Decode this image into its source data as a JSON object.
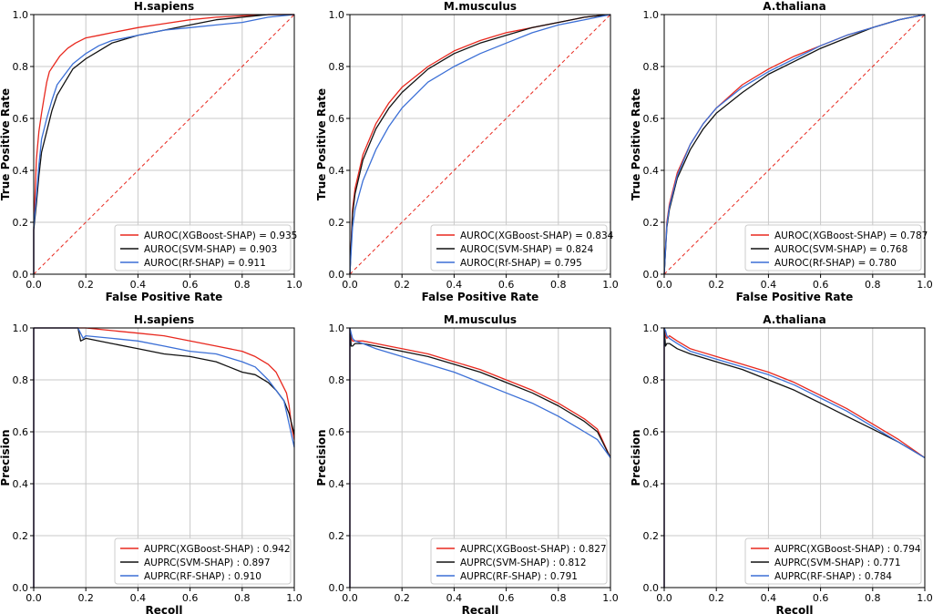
{
  "chart_data": [
    {
      "type": "line",
      "kind": "roc",
      "title": "H.sapiens",
      "xlabel": "False Positive Rate",
      "ylabel": "True Positive Rate",
      "xlim": [
        0,
        1
      ],
      "ylim": [
        0,
        1
      ],
      "xticks": [
        "0.0",
        "0.2",
        "0.4",
        "0.6",
        "0.8",
        "1.0"
      ],
      "yticks": [
        "0.0",
        "0.2",
        "0.4",
        "0.6",
        "0.8",
        "1.0"
      ],
      "grid": true,
      "legend_position": "lower-right",
      "diagonal": true,
      "series": [
        {
          "name": "XGBoost-SHAP",
          "label": "AUROC(XGBoost-SHAP) = 0.935",
          "color": "#e8281e",
          "x": [
            0,
            0,
            0.005,
            0.01,
            0.02,
            0.03,
            0.04,
            0.05,
            0.06,
            0.08,
            0.1,
            0.13,
            0.16,
            0.2,
            0.25,
            0.3,
            0.4,
            0.5,
            0.6,
            0.7,
            0.8,
            0.9,
            1
          ],
          "y": [
            0,
            0.17,
            0.3,
            0.44,
            0.55,
            0.62,
            0.68,
            0.74,
            0.78,
            0.81,
            0.84,
            0.87,
            0.89,
            0.91,
            0.92,
            0.93,
            0.95,
            0.965,
            0.98,
            0.99,
            0.995,
            1,
            1
          ]
        },
        {
          "name": "SVM-SHAP",
          "label": "AUROC(SVM-SHAP) = 0.903",
          "color": "#111111",
          "x": [
            0,
            0,
            0.01,
            0.02,
            0.03,
            0.05,
            0.07,
            0.09,
            0.12,
            0.15,
            0.2,
            0.25,
            0.3,
            0.4,
            0.5,
            0.6,
            0.7,
            0.8,
            0.9,
            1
          ],
          "y": [
            0,
            0.17,
            0.27,
            0.38,
            0.47,
            0.55,
            0.63,
            0.69,
            0.74,
            0.79,
            0.83,
            0.86,
            0.89,
            0.92,
            0.94,
            0.96,
            0.98,
            0.99,
            1,
            1
          ]
        },
        {
          "name": "RF-SHAP",
          "label": "AUROC(Rf-SHAP) = 0.911",
          "color": "#3b6fd6",
          "x": [
            0,
            0,
            0.01,
            0.02,
            0.03,
            0.05,
            0.07,
            0.09,
            0.12,
            0.15,
            0.2,
            0.25,
            0.3,
            0.4,
            0.5,
            0.6,
            0.7,
            0.8,
            0.9,
            1
          ],
          "y": [
            0,
            0.18,
            0.3,
            0.42,
            0.52,
            0.6,
            0.67,
            0.73,
            0.77,
            0.81,
            0.85,
            0.88,
            0.9,
            0.92,
            0.94,
            0.95,
            0.96,
            0.97,
            0.99,
            1
          ]
        }
      ]
    },
    {
      "type": "line",
      "kind": "roc",
      "title": "M.musculus",
      "xlabel": "False Positive Rate",
      "ylabel": "True Positive Rate",
      "xlim": [
        0,
        1
      ],
      "ylim": [
        0,
        1
      ],
      "xticks": [
        "0.0",
        "0.2",
        "0.4",
        "0.6",
        "0.8",
        "1.0"
      ],
      "yticks": [
        "0.0",
        "0.2",
        "0.4",
        "0.6",
        "0.8",
        "1.0"
      ],
      "grid": true,
      "legend_position": "lower-right",
      "diagonal": true,
      "series": [
        {
          "name": "XGBoost-SHAP",
          "label": "AUROC(XGBoost-SHAP) = 0.834",
          "color": "#e8281e",
          "x": [
            0,
            0.01,
            0.02,
            0.05,
            0.1,
            0.15,
            0.2,
            0.3,
            0.4,
            0.5,
            0.6,
            0.7,
            0.8,
            0.9,
            1
          ],
          "y": [
            0,
            0.25,
            0.33,
            0.46,
            0.58,
            0.66,
            0.72,
            0.8,
            0.86,
            0.9,
            0.93,
            0.95,
            0.97,
            0.99,
            1
          ]
        },
        {
          "name": "SVM-SHAP",
          "label": "AUROC(SVM-SHAP) = 0.824",
          "color": "#111111",
          "x": [
            0,
            0.01,
            0.02,
            0.05,
            0.1,
            0.15,
            0.2,
            0.3,
            0.4,
            0.5,
            0.6,
            0.7,
            0.8,
            0.9,
            1
          ],
          "y": [
            0,
            0.23,
            0.31,
            0.44,
            0.56,
            0.64,
            0.7,
            0.79,
            0.85,
            0.89,
            0.92,
            0.95,
            0.97,
            0.99,
            1
          ]
        },
        {
          "name": "RF-SHAP",
          "label": "AUROC(Rf-SHAP) = 0.795",
          "color": "#3b6fd6",
          "x": [
            0,
            0.01,
            0.02,
            0.05,
            0.1,
            0.15,
            0.2,
            0.3,
            0.4,
            0.5,
            0.6,
            0.7,
            0.8,
            0.9,
            1
          ],
          "y": [
            0,
            0.18,
            0.25,
            0.36,
            0.48,
            0.57,
            0.64,
            0.74,
            0.8,
            0.85,
            0.89,
            0.93,
            0.96,
            0.98,
            1
          ]
        }
      ]
    },
    {
      "type": "line",
      "kind": "roc",
      "title": "A.thaliana",
      "xlabel": "False Positive Rate",
      "ylabel": "True Positive Rate",
      "xlim": [
        0,
        1
      ],
      "ylim": [
        0,
        1
      ],
      "xticks": [
        "0.0",
        "0.2",
        "0.4",
        "0.6",
        "0.8",
        "1.0"
      ],
      "yticks": [
        "0.0",
        "0.2",
        "0.4",
        "0.6",
        "0.8",
        "1.0"
      ],
      "grid": true,
      "legend_position": "lower-right",
      "diagonal": true,
      "series": [
        {
          "name": "XGBoost-SHAP",
          "label": "AUROC(XGBoost-SHAP) = 0.787",
          "color": "#e8281e",
          "x": [
            0,
            0.01,
            0.02,
            0.05,
            0.1,
            0.15,
            0.2,
            0.3,
            0.4,
            0.5,
            0.6,
            0.7,
            0.8,
            0.9,
            1
          ],
          "y": [
            0,
            0.2,
            0.27,
            0.39,
            0.5,
            0.58,
            0.64,
            0.73,
            0.79,
            0.84,
            0.88,
            0.92,
            0.95,
            0.98,
            1
          ]
        },
        {
          "name": "SVM-SHAP",
          "label": "AUROC(SVM-SHAP) = 0.768",
          "color": "#111111",
          "x": [
            0,
            0.01,
            0.02,
            0.05,
            0.1,
            0.15,
            0.2,
            0.3,
            0.4,
            0.5,
            0.6,
            0.7,
            0.8,
            0.9,
            1
          ],
          "y": [
            0,
            0.18,
            0.25,
            0.37,
            0.48,
            0.56,
            0.62,
            0.7,
            0.77,
            0.82,
            0.87,
            0.91,
            0.95,
            0.98,
            1
          ]
        },
        {
          "name": "RF-SHAP",
          "label": "AUROC(Rf-SHAP) = 0.780",
          "color": "#3b6fd6",
          "x": [
            0,
            0.01,
            0.02,
            0.05,
            0.1,
            0.15,
            0.2,
            0.3,
            0.4,
            0.5,
            0.6,
            0.7,
            0.8,
            0.9,
            1
          ],
          "y": [
            0,
            0.19,
            0.26,
            0.38,
            0.5,
            0.58,
            0.64,
            0.72,
            0.78,
            0.83,
            0.88,
            0.92,
            0.95,
            0.98,
            1
          ]
        }
      ]
    },
    {
      "type": "line",
      "kind": "pr",
      "title": "H.sapiens",
      "xlabel": "Recoll",
      "ylabel": "Precision",
      "xlim": [
        0,
        1
      ],
      "ylim": [
        0,
        1
      ],
      "xticks": [
        "0.0",
        "0.2",
        "0.4",
        "0.6",
        "0.8",
        "1.0"
      ],
      "yticks": [
        "0.0",
        "0.2",
        "0.4",
        "0.6",
        "0.8",
        "1.0"
      ],
      "grid": true,
      "legend_position": "lower-right",
      "diagonal": false,
      "series": [
        {
          "name": "XGBoost-SHAP",
          "label": "AUPRC(XGBoost-SHAP) : 0.942",
          "color": "#e8281e",
          "x": [
            0,
            0,
            0.01,
            0.1,
            0.2,
            0.3,
            0.4,
            0.5,
            0.6,
            0.7,
            0.8,
            0.85,
            0.9,
            0.93,
            0.95,
            0.97,
            0.98,
            0.99,
            1
          ],
          "y": [
            0,
            1,
            1,
            1,
            1,
            0.99,
            0.98,
            0.97,
            0.95,
            0.93,
            0.91,
            0.89,
            0.86,
            0.83,
            0.79,
            0.75,
            0.7,
            0.62,
            0.57
          ]
        },
        {
          "name": "SVM-SHAP",
          "label": "AUPRC(SVM-SHAP) : 0.897",
          "color": "#111111",
          "x": [
            0,
            0,
            0.01,
            0.1,
            0.17,
            0.18,
            0.2,
            0.3,
            0.4,
            0.5,
            0.6,
            0.7,
            0.75,
            0.8,
            0.85,
            0.9,
            0.93,
            0.96,
            0.98,
            1
          ],
          "y": [
            0,
            1,
            1,
            1,
            1,
            0.95,
            0.96,
            0.94,
            0.92,
            0.9,
            0.89,
            0.87,
            0.85,
            0.83,
            0.82,
            0.79,
            0.76,
            0.72,
            0.67,
            0.59
          ]
        },
        {
          "name": "RF-SHAP",
          "label": "AUPRC(RF-SHAP) : 0.910",
          "color": "#3b6fd6",
          "x": [
            0,
            0,
            0.01,
            0.1,
            0.17,
            0.19,
            0.2,
            0.3,
            0.4,
            0.5,
            0.6,
            0.7,
            0.8,
            0.85,
            0.9,
            0.93,
            0.96,
            0.98,
            1
          ],
          "y": [
            0,
            1,
            1,
            1,
            1,
            0.96,
            0.97,
            0.96,
            0.95,
            0.93,
            0.91,
            0.9,
            0.87,
            0.85,
            0.8,
            0.76,
            0.72,
            0.63,
            0.54
          ]
        }
      ]
    },
    {
      "type": "line",
      "kind": "pr",
      "title": "M.musculus",
      "xlabel": "Recall",
      "ylabel": "Precision",
      "xlim": [
        0,
        1
      ],
      "ylim": [
        0,
        1
      ],
      "xticks": [
        "0.0",
        "0.2",
        "0.4",
        "0.6",
        "0.8",
        "1.0"
      ],
      "yticks": [
        "0.0",
        "0.2",
        "0.4",
        "0.6",
        "0.8",
        "1.0"
      ],
      "grid": true,
      "legend_position": "lower-right",
      "diagonal": false,
      "series": [
        {
          "name": "XGBoost-SHAP",
          "label": "AUPRC(XGBoost-SHAP) : 0.827",
          "color": "#e8281e",
          "x": [
            0,
            0,
            0.005,
            0.01,
            0.02,
            0.05,
            0.1,
            0.2,
            0.3,
            0.4,
            0.5,
            0.6,
            0.7,
            0.8,
            0.9,
            0.95,
            1
          ],
          "y": [
            0,
            1,
            0.96,
            0.95,
            0.95,
            0.95,
            0.94,
            0.92,
            0.9,
            0.87,
            0.84,
            0.8,
            0.76,
            0.71,
            0.65,
            0.61,
            0.5
          ]
        },
        {
          "name": "SVM-SHAP",
          "label": "AUPRC(SVM-SHAP) : 0.812",
          "color": "#111111",
          "x": [
            0,
            0,
            0.005,
            0.01,
            0.02,
            0.05,
            0.1,
            0.2,
            0.3,
            0.4,
            0.5,
            0.6,
            0.7,
            0.8,
            0.9,
            0.95,
            1
          ],
          "y": [
            0,
            1,
            0.93,
            0.93,
            0.94,
            0.94,
            0.93,
            0.91,
            0.89,
            0.86,
            0.83,
            0.79,
            0.75,
            0.7,
            0.64,
            0.6,
            0.5
          ]
        },
        {
          "name": "RF-SHAP",
          "label": "AUPRC(RF-SHAP) : 0.791",
          "color": "#3b6fd6",
          "x": [
            0,
            0,
            0.005,
            0.01,
            0.02,
            0.05,
            0.1,
            0.2,
            0.3,
            0.4,
            0.5,
            0.6,
            0.7,
            0.8,
            0.9,
            0.95,
            1
          ],
          "y": [
            0,
            1,
            0.98,
            0.96,
            0.95,
            0.94,
            0.92,
            0.89,
            0.86,
            0.83,
            0.79,
            0.75,
            0.71,
            0.66,
            0.6,
            0.57,
            0.5
          ]
        }
      ]
    },
    {
      "type": "line",
      "kind": "pr",
      "title": "A.thaliana",
      "xlabel": "Recoll",
      "ylabel": "Precision",
      "xlim": [
        0,
        1
      ],
      "ylim": [
        0,
        1
      ],
      "xticks": [
        "0.0",
        "0.2",
        "0.4",
        "0.6",
        "0.8",
        "1.0"
      ],
      "yticks": [
        "0.0",
        "0.2",
        "0.4",
        "0.6",
        "0.8",
        "1.0"
      ],
      "grid": true,
      "legend_position": "lower-right",
      "diagonal": false,
      "series": [
        {
          "name": "XGBoost-SHAP",
          "label": "AUPRC(XGBoost-SHAP) : 0.794",
          "color": "#e8281e",
          "x": [
            0,
            0,
            0.005,
            0.01,
            0.02,
            0.05,
            0.1,
            0.2,
            0.3,
            0.4,
            0.5,
            0.6,
            0.7,
            0.8,
            0.9,
            1
          ],
          "y": [
            0,
            1,
            0.97,
            0.96,
            0.97,
            0.95,
            0.92,
            0.89,
            0.86,
            0.83,
            0.79,
            0.74,
            0.69,
            0.63,
            0.57,
            0.5
          ]
        },
        {
          "name": "SVM-SHAP",
          "label": "AUPRC(SVM-SHAP) : 0.771",
          "color": "#111111",
          "x": [
            0,
            0,
            0.005,
            0.01,
            0.02,
            0.05,
            0.1,
            0.2,
            0.3,
            0.4,
            0.5,
            0.6,
            0.7,
            0.8,
            0.9,
            1
          ],
          "y": [
            0,
            1,
            0.93,
            0.94,
            0.94,
            0.92,
            0.9,
            0.87,
            0.84,
            0.8,
            0.76,
            0.71,
            0.66,
            0.61,
            0.56,
            0.5
          ]
        },
        {
          "name": "RF-SHAP",
          "label": "AUPRC(RF-SHAP) : 0.784",
          "color": "#3b6fd6",
          "x": [
            0,
            0,
            0.005,
            0.01,
            0.02,
            0.05,
            0.1,
            0.2,
            0.3,
            0.4,
            0.5,
            0.6,
            0.7,
            0.8,
            0.9,
            1
          ],
          "y": [
            0,
            1,
            0.99,
            0.97,
            0.96,
            0.94,
            0.91,
            0.88,
            0.85,
            0.82,
            0.78,
            0.73,
            0.68,
            0.62,
            0.56,
            0.5
          ]
        }
      ]
    }
  ]
}
